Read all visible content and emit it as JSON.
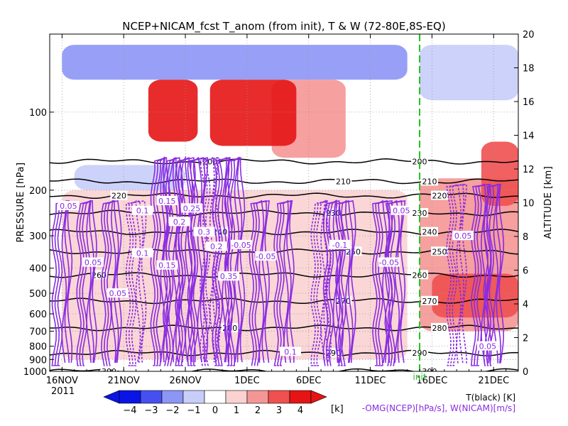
{
  "chart_data": {
    "type": "heatmap",
    "title": "NCEP+NICAM_fcst T_anom (from init), T & W  (72-80E,8S-EQ)",
    "xlabel": "",
    "ylabel": "PRESSURE [hPa]",
    "y2label": "ALTITUDE [km]",
    "x_range": [
      "2011-11-15",
      "2011-12-23"
    ],
    "x_tick_labels": [
      "16NOV",
      "21NOV",
      "26NOV",
      "1DEC",
      "6DEC",
      "11DEC",
      "16DEC",
      "21DEC"
    ],
    "x_tick_dates": [
      "2011-11-16",
      "2011-11-21",
      "2011-11-26",
      "2011-12-01",
      "2011-12-06",
      "2011-12-11",
      "2011-12-16",
      "2011-12-21"
    ],
    "year_label": "2011",
    "y_scale": "log",
    "y_range": [
      1000,
      50
    ],
    "y_ticks": [
      100,
      200,
      300,
      400,
      500,
      600,
      700,
      800,
      900,
      1000
    ],
    "y2_range": [
      0,
      20
    ],
    "y2_ticks": [
      0,
      2,
      4,
      6,
      8,
      10,
      12,
      14,
      16,
      18,
      20
    ],
    "init_date": "2011-12-15",
    "init_label": "init",
    "colorbar": {
      "ticks": [
        -4,
        -3,
        -2,
        -1,
        0,
        1,
        2,
        3,
        4
      ],
      "unit": "[k]",
      "colors": [
        "#0a14e6",
        "#4650f0",
        "#8c96f5",
        "#c8cdfa",
        "#ffffff",
        "#fad2d2",
        "#f59696",
        "#f05050",
        "#e61414"
      ]
    },
    "legend": [
      "T(black) [K]",
      "-OMG(NCEP)[hPa/s], W(NICAM)[m/s]"
    ],
    "temperature_contours": [
      {
        "level": 200,
        "pressure": 155
      },
      {
        "level": 210,
        "pressure": 185
      },
      {
        "level": 220,
        "pressure": 210
      },
      {
        "level": 230,
        "pressure": 245
      },
      {
        "level": 240,
        "pressure": 290
      },
      {
        "level": 250,
        "pressure": 345
      },
      {
        "level": 260,
        "pressure": 425
      },
      {
        "level": 270,
        "pressure": 535
      },
      {
        "level": 280,
        "pressure": 680
      },
      {
        "level": 290,
        "pressure": 850
      },
      {
        "level": 300,
        "pressure": 1000
      }
    ],
    "temperature_labels": [
      "200",
      "210",
      "220",
      "230",
      "240",
      "250",
      "260",
      "270",
      "280",
      "290",
      "300"
    ],
    "anomaly_regions": [
      {
        "t0": "2011-11-23",
        "t1": "2011-11-27",
        "p0": 75,
        "p1": 130,
        "value": 3.5
      },
      {
        "t0": "2011-11-28",
        "t1": "2011-12-05",
        "p0": 75,
        "p1": 135,
        "value": 3.5
      },
      {
        "t0": "2011-12-03",
        "t1": "2011-12-09",
        "p0": 75,
        "p1": 150,
        "value": 1.5
      },
      {
        "t0": "2011-11-16",
        "t1": "2011-12-14",
        "p0": 55,
        "p1": 75,
        "value": -2
      },
      {
        "t0": "2011-12-15",
        "t1": "2011-12-23",
        "p0": 55,
        "p1": 90,
        "value": -1.5
      },
      {
        "t0": "2011-11-17",
        "t1": "2011-11-26",
        "p0": 160,
        "p1": 200,
        "value": -1.5
      },
      {
        "t0": "2011-12-15",
        "t1": "2011-12-23",
        "p0": 180,
        "p1": 700,
        "value": 1.5
      },
      {
        "t0": "2011-12-16",
        "t1": "2011-12-23",
        "p0": 420,
        "p1": 620,
        "value": 2.5
      },
      {
        "t0": "2011-12-20",
        "t1": "2011-12-23",
        "p0": 130,
        "p1": 230,
        "value": 2.5
      },
      {
        "t0": "2011-11-16",
        "t1": "2011-12-14",
        "p0": 200,
        "p1": 900,
        "value": 0.5
      }
    ],
    "omega_labels": [
      "0.05",
      "0.05",
      "0.1",
      "0.15",
      "0.2",
      "0.25",
      "0.3",
      "0.05",
      "0.1",
      "0.15",
      "0.2",
      "0.35",
      "-0.05",
      "-0.05",
      "-0.05",
      "-0.1",
      "0.1",
      "0.05",
      "0.05",
      "0.05"
    ]
  }
}
